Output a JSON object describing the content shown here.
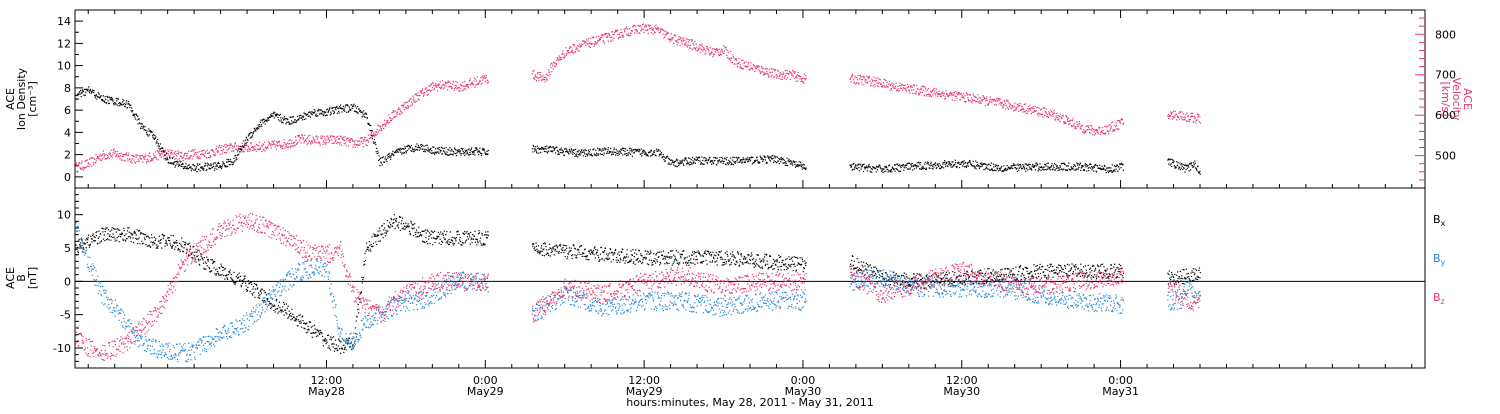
{
  "colors": {
    "black": "#000000",
    "pink": "#e8336b",
    "blue": "#1f87db"
  },
  "chart_data": [
    {
      "type": "scatter",
      "panel": "plasma",
      "ylabel_left": [
        "ACE",
        "Ion Density",
        "[cm⁻³]"
      ],
      "ylabel_right": [
        "ACE",
        "Velocity",
        "[km/s]"
      ],
      "ylim_left": [
        -1,
        15
      ],
      "yticks_left": [
        0,
        2,
        4,
        6,
        8,
        10,
        12,
        14
      ],
      "ylim_right": [
        420,
        860
      ],
      "yticks_right": [
        500,
        600,
        700,
        800
      ],
      "xlim_hours": [
        -7,
        95
      ],
      "gaps_hours": [
        [
          24.2,
          27.5
        ],
        [
          48.2,
          51.5
        ],
        [
          72.2,
          75.5
        ],
        [
          78.3,
          95
        ]
      ],
      "series": [
        {
          "name": "Ion Density",
          "axis": "left",
          "color": "#000000",
          "x": [
            -7,
            -6,
            -5,
            -4,
            -3,
            -2,
            -1,
            0,
            1,
            2,
            3,
            4,
            5,
            6,
            7,
            8,
            9,
            10,
            11,
            12,
            13,
            14,
            15,
            16,
            17,
            18,
            19,
            20,
            21,
            22,
            23,
            24,
            27.5,
            29,
            31,
            33,
            35,
            37,
            38,
            40,
            42,
            44,
            46,
            48,
            51.5,
            54,
            57,
            60,
            63,
            66,
            69,
            70,
            71,
            72,
            75.5,
            76.5,
            77,
            77.5,
            78
          ],
          "y": [
            7.2,
            7.8,
            7.0,
            6.8,
            6.5,
            4.5,
            3.5,
            1.5,
            1.0,
            0.8,
            0.9,
            1.0,
            1.5,
            3.5,
            4.8,
            5.5,
            5.0,
            5.3,
            5.8,
            5.8,
            6.1,
            6.2,
            5.5,
            1.3,
            2.0,
            2.5,
            2.7,
            2.4,
            2.3,
            2.2,
            2.3,
            2.2,
            2.5,
            2.4,
            2.1,
            2.3,
            2.2,
            2.2,
            1.2,
            1.5,
            1.4,
            1.5,
            1.6,
            0.9,
            0.9,
            0.7,
            1.0,
            1.2,
            0.8,
            0.9,
            0.9,
            0.8,
            0.7,
            0.9,
            1.4,
            0.9,
            0.7,
            1.2,
            0.4
          ]
        },
        {
          "name": "Velocity",
          "axis": "right",
          "color": "#e8336b",
          "x": [
            -7,
            -6,
            -5,
            -4,
            -3,
            -2,
            -1,
            0,
            1,
            2,
            3,
            4,
            5,
            6,
            7,
            8,
            9,
            10,
            11,
            12,
            13,
            14,
            15,
            16,
            17,
            18,
            19,
            20,
            21,
            22,
            23,
            24,
            27.5,
            28.5,
            29,
            30,
            31,
            32,
            33,
            34,
            35,
            36,
            37,
            38,
            39,
            40,
            41,
            42,
            43,
            44,
            45,
            46,
            47,
            48,
            51.5,
            53,
            55,
            57,
            59,
            61,
            63,
            65,
            67,
            69,
            70,
            71,
            72,
            75.5,
            76.5,
            77,
            78
          ],
          "y": [
            470,
            480,
            500,
            505,
            495,
            490,
            500,
            505,
            498,
            505,
            505,
            515,
            520,
            520,
            522,
            525,
            530,
            540,
            538,
            538,
            538,
            530,
            535,
            570,
            600,
            625,
            650,
            670,
            675,
            670,
            680,
            690,
            700,
            690,
            720,
            755,
            770,
            780,
            790,
            800,
            810,
            815,
            810,
            790,
            780,
            770,
            755,
            760,
            730,
            720,
            710,
            700,
            700,
            690,
            690,
            685,
            670,
            660,
            650,
            640,
            628,
            615,
            600,
            570,
            560,
            565,
            580,
            600,
            600,
            595,
            590
          ]
        }
      ]
    },
    {
      "type": "scatter",
      "panel": "magnetic_field",
      "ylabel_left": [
        "ACE",
        "B",
        "[nT]"
      ],
      "ylim": [
        -13,
        14
      ],
      "yticks": [
        -10,
        -5,
        0,
        5,
        10
      ],
      "xlim_hours": [
        -7,
        95
      ],
      "gaps_hours": [
        [
          24.2,
          27.5
        ],
        [
          48.2,
          51.5
        ],
        [
          72.2,
          75.5
        ],
        [
          78.3,
          95
        ]
      ],
      "legend_placement": "right",
      "series": [
        {
          "name": "Bx",
          "color": "#000000",
          "x": [
            -7,
            -5,
            -3,
            -1,
            0,
            1,
            2,
            3,
            4,
            5,
            6,
            7,
            8,
            9,
            10,
            11,
            12,
            13,
            14,
            15,
            16,
            17,
            18,
            19,
            20,
            21,
            22,
            23,
            24,
            27.5,
            30,
            33,
            36,
            39,
            42,
            45,
            48,
            51.5,
            54,
            57,
            60,
            63,
            66,
            69,
            72,
            75.5,
            76.5,
            77,
            78
          ],
          "y": [
            5,
            7,
            7,
            6,
            6,
            5.5,
            4,
            2.5,
            1.5,
            0.5,
            -0.5,
            -2,
            -3.5,
            -4.5,
            -6,
            -7.5,
            -9,
            -9.8,
            -9.5,
            5,
            7,
            9,
            8.5,
            7,
            6.5,
            6.5,
            6.5,
            6.5,
            6.5,
            5,
            4.5,
            4,
            3.5,
            3.5,
            3.5,
            3,
            2.5,
            3,
            0.5,
            0,
            0.5,
            1,
            1.5,
            1.5,
            1.5,
            0.5,
            0.5,
            1,
            1
          ]
        },
        {
          "name": "By",
          "color": "#1f87db",
          "x": [
            -7,
            -6,
            -5,
            -4,
            -3,
            -2,
            -1,
            0,
            1,
            2,
            3,
            4,
            5,
            6,
            7,
            8,
            9,
            10,
            11,
            12,
            13,
            14,
            15,
            16,
            17,
            18,
            19,
            20,
            21,
            22,
            23,
            24,
            27.5,
            30,
            33,
            36,
            39,
            42,
            45,
            48,
            51.5,
            54,
            57,
            60,
            63,
            66,
            69,
            72,
            75.5,
            76.5,
            77,
            78
          ],
          "y": [
            8,
            3,
            -2,
            -4,
            -7,
            -9,
            -10,
            -10.5,
            -10.8,
            -10.5,
            -9,
            -8,
            -7,
            -6,
            -4,
            -2,
            0,
            1.5,
            2,
            2,
            -8,
            -9,
            -6,
            -5,
            -4,
            -3,
            -3,
            -2,
            -1,
            0,
            0,
            0,
            -5,
            -2,
            -4,
            -3,
            -3,
            -4,
            -3,
            -3,
            0,
            0.5,
            -1,
            -1,
            -1,
            -2,
            -3,
            -3.5,
            -3,
            -3,
            -1,
            -3
          ]
        },
        {
          "name": "Bz",
          "color": "#e8336b",
          "x": [
            -7,
            -6,
            -5,
            -4,
            -3,
            -2,
            -1,
            0,
            1,
            2,
            3,
            4,
            5,
            6,
            7,
            8,
            9,
            10,
            11,
            12,
            13,
            14,
            15,
            16,
            17,
            18,
            19,
            20,
            21,
            22,
            23,
            24,
            27.5,
            30,
            33,
            36,
            39,
            42,
            45,
            48,
            51.5,
            54,
            57,
            60,
            63,
            66,
            69,
            72,
            75.5,
            76.5,
            77,
            78
          ],
          "y": [
            -8,
            -10,
            -11,
            -10,
            -9,
            -7,
            -5,
            -2,
            2,
            4.5,
            6,
            7.5,
            8.5,
            9,
            8.5,
            7.5,
            6.5,
            5,
            4,
            4,
            5,
            -2,
            -4,
            -5,
            -3,
            -2,
            -1,
            0,
            0,
            0,
            0,
            0,
            -5,
            -1,
            -2,
            0,
            1,
            -1,
            0,
            0,
            1,
            -2,
            0,
            1.5,
            0,
            -1,
            0,
            1,
            -1,
            -2,
            -3,
            -3
          ]
        }
      ]
    }
  ],
  "xaxis": {
    "ticks": [
      {
        "hour": 12,
        "time": "12:00",
        "date": "May28"
      },
      {
        "hour": 24,
        "time": "0:00",
        "date": "May29"
      },
      {
        "hour": 36,
        "time": "12:00",
        "date": "May29"
      },
      {
        "hour": 48,
        "time": "0:00",
        "date": "May30"
      },
      {
        "hour": 60,
        "time": "12:00",
        "date": "May30"
      },
      {
        "hour": 72,
        "time": "0:00",
        "date": "May31"
      }
    ],
    "label": "hours:minutes, May 28, 2011 - May 31, 2011"
  }
}
